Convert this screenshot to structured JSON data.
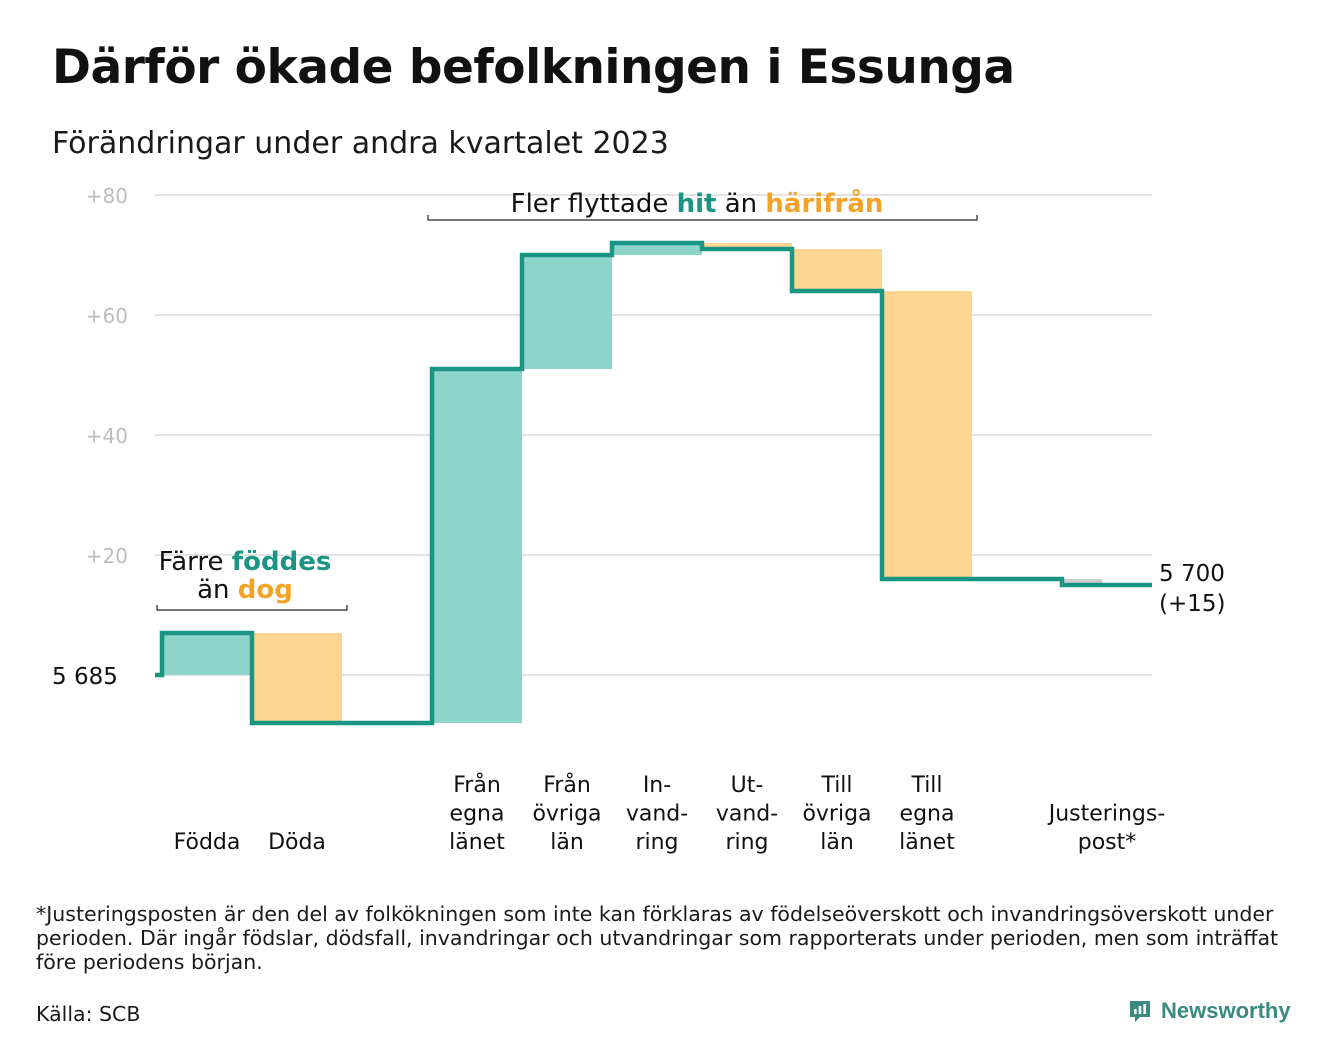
{
  "title": "Därför ökade befolkningen i Essunga",
  "subtitle": "Förändringar under andra kvartalet 2023",
  "chart_data": {
    "type": "waterfall",
    "start_value": 5685,
    "start_label": "5  685",
    "ylim": [
      -10,
      80
    ],
    "yticks": [
      {
        "value": 20,
        "label": "+20"
      },
      {
        "value": 40,
        "label": "+40"
      },
      {
        "value": 60,
        "label": "+60"
      },
      {
        "value": 80,
        "label": "+80"
      }
    ],
    "grid": true,
    "colors": {
      "inflow": "#8dd4ca",
      "outflow": "#fcd690",
      "line": "#1a9483",
      "adjustment": "#cccccc",
      "grid": "#e3e3e3",
      "tick": "#bdbdbd"
    },
    "steps": [
      {
        "label_lines": [
          "Födda"
        ],
        "value": 7,
        "kind": "inflow"
      },
      {
        "label_lines": [
          "Döda"
        ],
        "value": -15,
        "kind": "outflow"
      },
      {
        "label_lines": [],
        "value": 0,
        "kind": "gap"
      },
      {
        "label_lines": [
          "Från",
          "egna",
          "länet"
        ],
        "value": 59,
        "kind": "inflow"
      },
      {
        "label_lines": [
          "Från",
          "övriga",
          "län"
        ],
        "value": 19,
        "kind": "inflow"
      },
      {
        "label_lines": [
          "In-",
          "vand-",
          "ring"
        ],
        "value": 2,
        "kind": "inflow"
      },
      {
        "label_lines": [
          "Ut-",
          "vand-",
          "ring"
        ],
        "value": -1,
        "kind": "outflow"
      },
      {
        "label_lines": [
          "Till",
          "övriga",
          "län"
        ],
        "value": -7,
        "kind": "outflow"
      },
      {
        "label_lines": [
          "Till",
          "egna",
          "länet"
        ],
        "value": -48,
        "kind": "outflow"
      },
      {
        "label_lines": [],
        "value": 0,
        "kind": "gap"
      },
      {
        "label_lines": [
          "Justerings-",
          "post*"
        ],
        "value": -1,
        "kind": "adjustment"
      }
    ],
    "end_label_lines": [
      "5 700",
      "(+15)"
    ],
    "annotations": [
      {
        "id": "births",
        "parts": [
          [
            {
              "text": "Färre ",
              "style": "plain"
            },
            {
              "text": "föddes",
              "style": "inflow"
            }
          ],
          [
            {
              "text": "än ",
              "style": "plain"
            },
            {
              "text": "dog",
              "style": "outflow"
            }
          ]
        ]
      },
      {
        "id": "migration",
        "parts": [
          [
            {
              "text": "Fler flyttade ",
              "style": "plain"
            },
            {
              "text": "hit",
              "style": "inflow"
            },
            {
              "text": " än ",
              "style": "plain"
            },
            {
              "text": "härifrån",
              "style": "outflow"
            }
          ]
        ]
      }
    ]
  },
  "footnote": "*Justeringsposten är den del av folkökningen som inte kan förklaras av födelseöverskott och invandringsöverskott under perioden. Där ingår födslar, dödsfall, invandringar och utvandringar som rapporterats under perioden, men som inträffat före periodens början.",
  "source": "Källa: SCB",
  "brand": {
    "name": "Newsworthy",
    "icon": "newsworthy-logo-icon"
  }
}
